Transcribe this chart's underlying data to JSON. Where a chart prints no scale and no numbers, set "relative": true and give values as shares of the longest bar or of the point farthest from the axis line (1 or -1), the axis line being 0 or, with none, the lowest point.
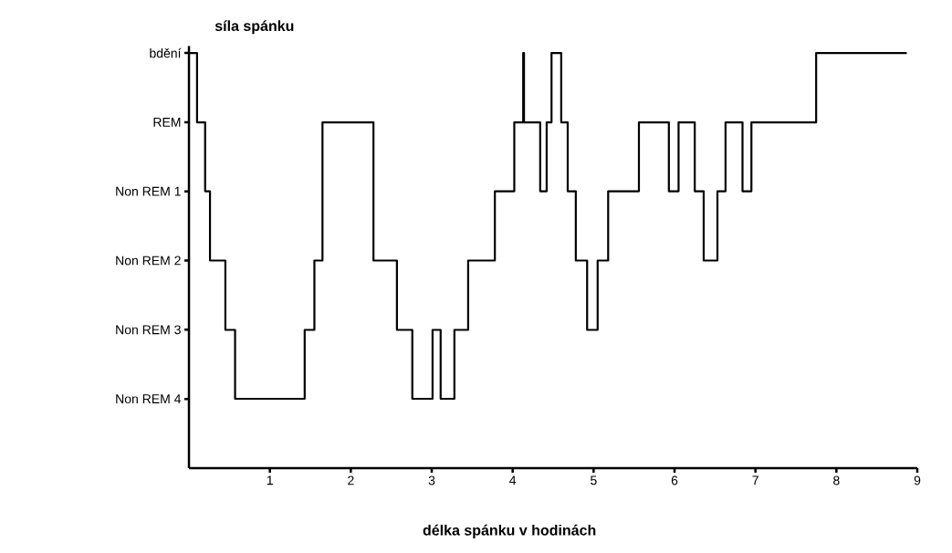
{
  "chart_data": {
    "type": "step",
    "ylabel": "síla spánku",
    "xlabel": "délka spánku v hodinách",
    "relative": true,
    "x": [
      0,
      0.1,
      0.2,
      0.26,
      0.45,
      0.57,
      1.43,
      1.55,
      1.65,
      2.28,
      2.57,
      2.76,
      3.01,
      3.11,
      3.28,
      3.45,
      3.78,
      4.02,
      4.13,
      4.14,
      4.34,
      4.42,
      4.48,
      4.6,
      4.68,
      4.78,
      4.92,
      5.05,
      5.18,
      5.56,
      5.93,
      6.05,
      6.25,
      6.36,
      6.53,
      6.63,
      6.84,
      6.95,
      7.75,
      8.87
    ],
    "values": [
      1,
      0.833,
      0.667,
      0.5,
      0.333,
      0.167,
      0.333,
      0.5,
      0.833,
      0.5,
      0.333,
      0.167,
      0.333,
      0.167,
      0.333,
      0.5,
      0.667,
      0.833,
      1,
      0.833,
      0.667,
      0.833,
      1,
      0.833,
      0.667,
      0.5,
      0.333,
      0.5,
      0.667,
      0.833,
      0.667,
      0.833,
      0.667,
      0.5,
      0.667,
      0.833,
      0.667,
      0.833,
      1,
      1
    ],
    "color": "#000000",
    "line_style": "solid",
    "xlim": [
      0,
      9
    ],
    "xticks": [
      1,
      2,
      3,
      4,
      5,
      6,
      7,
      8,
      9
    ],
    "annotations": [
      "Non REM 4",
      "Non REM 3",
      "Non REM 2",
      "Non REM 1",
      "REM",
      "bdění"
    ]
  }
}
